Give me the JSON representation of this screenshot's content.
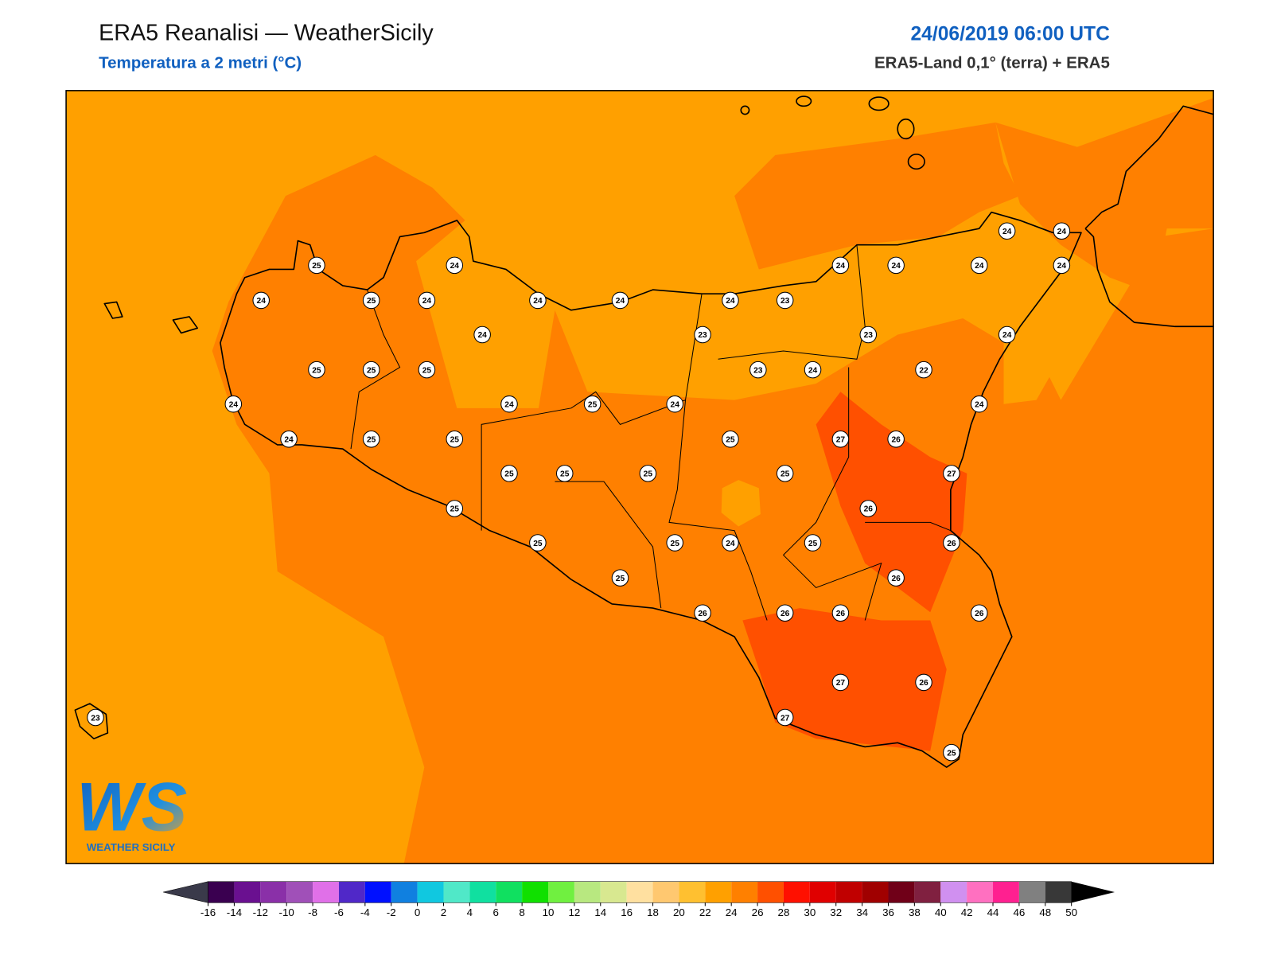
{
  "header": {
    "title": "ERA5 Reanalisi — WeatherSicily",
    "subtitle": "Temperatura a 2 metri (°C)",
    "date": "24/06/2019 06:00 UTC",
    "source": "ERA5-Land 0,1° (terra) + ERA5"
  },
  "stations": [
    {
      "value": 25
    },
    {
      "value": 24
    },
    {
      "value": 24
    },
    {
      "value": 25
    },
    {
      "value": 24
    },
    {
      "value": 24
    },
    {
      "value": 24
    },
    {
      "value": 24
    },
    {
      "value": 23
    },
    {
      "value": 24
    },
    {
      "value": 24
    },
    {
      "value": 24
    },
    {
      "value": 24
    },
    {
      "value": 24
    },
    {
      "value": 24
    },
    {
      "value": 24
    },
    {
      "value": 23
    },
    {
      "value": 23
    },
    {
      "value": 24
    },
    {
      "value": 25
    },
    {
      "value": 25
    },
    {
      "value": 25
    },
    {
      "value": 23
    },
    {
      "value": 24
    },
    {
      "value": 22
    },
    {
      "value": 24
    },
    {
      "value": 24
    },
    {
      "value": 25
    },
    {
      "value": 24
    },
    {
      "value": 24
    },
    {
      "value": 24
    },
    {
      "value": 25
    },
    {
      "value": 25
    },
    {
      "value": 25
    },
    {
      "value": 27
    },
    {
      "value": 26
    },
    {
      "value": 25
    },
    {
      "value": 25
    },
    {
      "value": 25
    },
    {
      "value": 25
    },
    {
      "value": 27
    },
    {
      "value": 25
    },
    {
      "value": 26
    },
    {
      "value": 25
    },
    {
      "value": 25
    },
    {
      "value": 24
    },
    {
      "value": 25
    },
    {
      "value": 26
    },
    {
      "value": 25
    },
    {
      "value": 26
    },
    {
      "value": 26
    },
    {
      "value": 26
    },
    {
      "value": 26
    },
    {
      "value": 26
    },
    {
      "value": 27
    },
    {
      "value": 26
    },
    {
      "value": 27
    },
    {
      "value": 23
    },
    {
      "value": 25
    }
  ],
  "colorbar": {
    "ticks": [
      -16,
      -14,
      -12,
      -10,
      -8,
      -6,
      -4,
      -2,
      0,
      2,
      4,
      6,
      8,
      10,
      12,
      14,
      16,
      18,
      20,
      22,
      24,
      26,
      28,
      30,
      32,
      34,
      36,
      38,
      40,
      42,
      44,
      46,
      48,
      50
    ],
    "colors": [
      "#3a0050",
      "#6a1090",
      "#8a30a8",
      "#a050b8",
      "#e070e8",
      "#5028c8",
      "#0010ff",
      "#1080e0",
      "#10c8e0",
      "#50e8c8",
      "#10e0a0",
      "#10e060",
      "#10e000",
      "#70f040",
      "#b8e880",
      "#d8e890",
      "#ffe0a0",
      "#ffc870",
      "#ffc030",
      "#ffa000",
      "#ff8000",
      "#ff5000",
      "#ff1000",
      "#e00000",
      "#c00000",
      "#a00000",
      "#700018",
      "#802040",
      "#d090f0",
      "#ff70c0",
      "#ff2090",
      "#808080",
      "#383838"
    ]
  },
  "logo": {
    "mark": "WS",
    "text": "WEATHER SICILY"
  }
}
